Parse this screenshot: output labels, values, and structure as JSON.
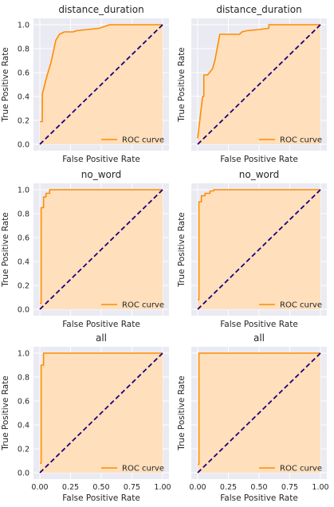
{
  "figure": {
    "background": "#ffffff",
    "plot_background": "#eaeaf2",
    "grid_color": "#ffffff",
    "roc_color": "#ff8c00",
    "fill_color": "#ffdfbc",
    "diagonal_color": "#1c007a"
  },
  "chart_data": [
    {
      "type": "area",
      "title": "distance_duration",
      "xlabel": "False Positive Rate",
      "ylabel": "True Positive Rate",
      "xlim": [
        0,
        1
      ],
      "ylim": [
        0,
        1
      ],
      "xticks": [],
      "yticks": [
        "0.0",
        "0.2",
        "0.4",
        "0.6",
        "0.8",
        "1.0"
      ],
      "grid": true,
      "legend": {
        "label": "ROC curve",
        "position": "lower-right"
      },
      "series": [
        {
          "name": "ROC curve",
          "x": [
            0,
            0.02,
            0.02,
            0.06,
            0.09,
            0.13,
            0.16,
            0.2,
            0.27,
            0.3,
            0.48,
            0.57,
            1.0
          ],
          "y": [
            0.19,
            0.19,
            0.42,
            0.58,
            0.68,
            0.87,
            0.92,
            0.94,
            0.94,
            0.95,
            0.97,
            1.0,
            1.0
          ]
        }
      ],
      "diagonal": {
        "x": [
          0,
          1
        ],
        "y": [
          0,
          1
        ]
      }
    },
    {
      "type": "area",
      "title": "distance_duration",
      "xlabel": "False Positive Rate",
      "ylabel": "True Positive Rate",
      "xlim": [
        0,
        1
      ],
      "ylim": [
        0,
        1
      ],
      "xticks": [],
      "yticks": [],
      "grid": true,
      "legend": {
        "label": "ROC curve",
        "position": "lower-right"
      },
      "series": [
        {
          "name": "ROC curve",
          "x": [
            0,
            0.04,
            0.05,
            0.05,
            0.08,
            0.12,
            0.14,
            0.18,
            0.22,
            0.34,
            0.36,
            0.4,
            0.5,
            0.58,
            0.58,
            1.0
          ],
          "y": [
            0.05,
            0.4,
            0.4,
            0.58,
            0.58,
            0.63,
            0.7,
            0.92,
            0.92,
            0.92,
            0.94,
            0.95,
            0.96,
            0.97,
            1.0,
            1.0
          ]
        }
      ],
      "diagonal": {
        "x": [
          0,
          1
        ],
        "y": [
          0,
          1
        ]
      }
    },
    {
      "type": "area",
      "title": "no_word",
      "xlabel": "False Positive Rate",
      "ylabel": "True Positive Rate",
      "xlim": [
        0,
        1
      ],
      "ylim": [
        0,
        1
      ],
      "xticks": [],
      "yticks": [
        "0.0",
        "0.2",
        "0.4",
        "0.6",
        "0.8",
        "1.0"
      ],
      "grid": true,
      "legend": {
        "label": "ROC curve",
        "position": "lower-right"
      },
      "series": [
        {
          "name": "ROC curve",
          "x": [
            0,
            0.01,
            0.01,
            0.03,
            0.03,
            0.05,
            0.05,
            0.08,
            0.08,
            1.0
          ],
          "y": [
            0.05,
            0.05,
            0.85,
            0.85,
            0.94,
            0.94,
            0.97,
            0.97,
            1.0,
            1.0
          ]
        }
      ],
      "diagonal": {
        "x": [
          0,
          1
        ],
        "y": [
          0,
          1
        ]
      }
    },
    {
      "type": "area",
      "title": "no_word",
      "xlabel": "False Positive Rate",
      "ylabel": "True Positive Rate",
      "xlim": [
        0,
        1
      ],
      "ylim": [
        0,
        1
      ],
      "xticks": [],
      "yticks": [],
      "grid": true,
      "legend": {
        "label": "ROC curve",
        "position": "lower-right"
      },
      "series": [
        {
          "name": "ROC curve",
          "x": [
            0,
            0.01,
            0.01,
            0.03,
            0.03,
            0.06,
            0.06,
            0.1,
            0.1,
            0.13,
            0.13,
            1.0
          ],
          "y": [
            0.08,
            0.08,
            0.9,
            0.9,
            0.95,
            0.95,
            0.97,
            0.97,
            0.99,
            0.99,
            1.0,
            1.0
          ]
        }
      ],
      "diagonal": {
        "x": [
          0,
          1
        ],
        "y": [
          0,
          1
        ]
      }
    },
    {
      "type": "area",
      "title": "all",
      "xlabel": "False Positive Rate",
      "ylabel": "True Positive Rate",
      "xlim": [
        0,
        1
      ],
      "ylim": [
        0,
        1
      ],
      "xticks": [
        "0.00",
        "0.25",
        "0.50",
        "0.75",
        "1.00"
      ],
      "yticks": [
        "0.0",
        "0.2",
        "0.4",
        "0.6",
        "0.8",
        "1.0"
      ],
      "grid": true,
      "legend": {
        "label": "ROC curve",
        "position": "lower-right"
      },
      "series": [
        {
          "name": "ROC curve",
          "x": [
            0,
            0.01,
            0.01,
            0.03,
            0.03,
            1.0
          ],
          "y": [
            0.08,
            0.08,
            0.9,
            0.9,
            1.0,
            1.0
          ]
        }
      ],
      "diagonal": {
        "x": [
          0,
          1
        ],
        "y": [
          0,
          1
        ]
      }
    },
    {
      "type": "area",
      "title": "all",
      "xlabel": "False Positive Rate",
      "ylabel": "True Positive Rate",
      "xlim": [
        0,
        1
      ],
      "ylim": [
        0,
        1
      ],
      "xticks": [
        "0.00",
        "0.25",
        "0.50",
        "0.75",
        "1.00"
      ],
      "yticks": [],
      "grid": true,
      "legend": {
        "label": "ROC curve",
        "position": "lower-right"
      },
      "series": [
        {
          "name": "ROC curve",
          "x": [
            0,
            0.01,
            0.01,
            1.0
          ],
          "y": [
            0.07,
            0.07,
            1.0,
            1.0
          ]
        }
      ],
      "diagonal": {
        "x": [
          0,
          1
        ],
        "y": [
          0,
          1
        ]
      }
    }
  ]
}
